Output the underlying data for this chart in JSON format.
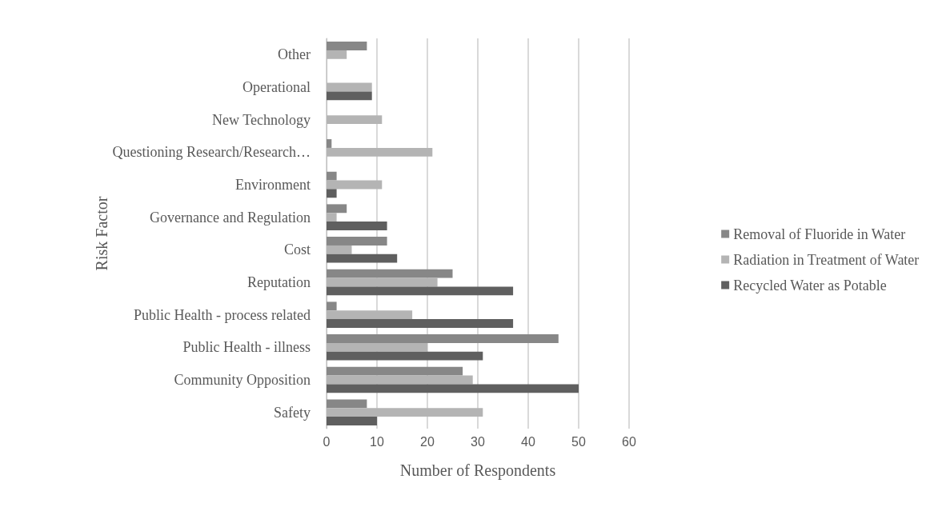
{
  "chart_data": {
    "type": "bar",
    "orientation": "horizontal",
    "xlabel": "Number of Respondents",
    "ylabel": "Risk Factor",
    "categories": [
      "Other",
      "Operational",
      "New Technology",
      "Questioning Research/Research…",
      "Environment",
      "Governance and Regulation",
      "Cost",
      "Reputation",
      "Public Health - process related",
      "Public Health - illness",
      "Community Opposition",
      "Safety"
    ],
    "series": [
      {
        "name": "Removal of Fluoride in Water",
        "color": "#878787",
        "values": [
          8,
          null,
          null,
          1,
          2,
          4,
          12,
          25,
          2,
          46,
          27,
          8
        ]
      },
      {
        "name": "Radiation in Treatment of Water",
        "color": "#b4b4b4",
        "values": [
          4,
          9,
          11,
          21,
          11,
          2,
          5,
          22,
          17,
          20,
          29,
          31
        ]
      },
      {
        "name": "Recycled Water as Potable",
        "color": "#5f5f5f",
        "values": [
          null,
          9,
          null,
          null,
          2,
          12,
          14,
          37,
          37,
          31,
          50,
          10
        ]
      }
    ],
    "xlim": [
      0,
      60
    ],
    "xticks": [
      0,
      10,
      20,
      30,
      40,
      50,
      60
    ],
    "grid": "x",
    "legend": "right"
  }
}
